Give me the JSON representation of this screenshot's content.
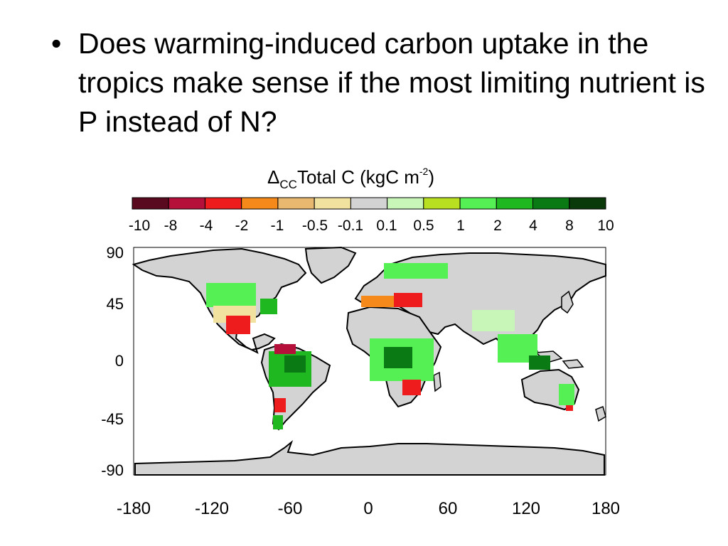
{
  "slide": {
    "bullet_symbol": "•",
    "bullet_text": "Does warming-induced carbon uptake in the tropics make sense if the most limiting nutrient is P instead of N?"
  },
  "map": {
    "title_delta": "Δ",
    "title_sub": "CC",
    "title_main": "Total C (kgC m",
    "title_sup": "-2",
    "title_close": ")",
    "legend": {
      "ticks": [
        "-10",
        "-8",
        "-4",
        "-2",
        "-1",
        "-0.5",
        "-0.1",
        "0.1",
        "0.5",
        "1",
        "2",
        "4",
        "8",
        "10"
      ],
      "colors": [
        "#5a0a1e",
        "#b4103a",
        "#ee1c1c",
        "#f58a1a",
        "#e8b870",
        "#f2e2a0",
        "#d3d3d3",
        "#c8f5b8",
        "#b8e020",
        "#54f054",
        "#20b820",
        "#0a7a14",
        "#0a3a0a"
      ]
    },
    "lat_ticks": [
      "90",
      "45",
      "0",
      "-45",
      "-90"
    ],
    "lon_ticks": [
      "-180",
      "-120",
      "-60",
      "0",
      "60",
      "120",
      "180"
    ],
    "land_color": "#d3d3d3",
    "coast_color": "#000000"
  }
}
